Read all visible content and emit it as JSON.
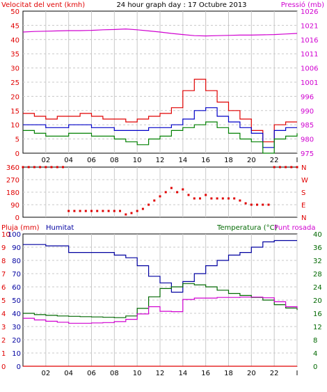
{
  "title": "24 hour graph day : 17 Octubre 2013",
  "x_ticks": [
    "02",
    "04",
    "06",
    "08",
    "10",
    "12",
    "14",
    "16",
    "18",
    "20",
    "22",
    "I"
  ],
  "chart_data": [
    {
      "type": "line",
      "left_label": "Velocitat del vent (kmh)",
      "right_label": "Pressió (mb)",
      "left_ticks": [
        "50",
        "45",
        "40",
        "35",
        "30",
        "25",
        "20",
        "15",
        "10",
        "5",
        "0"
      ],
      "right_ticks": [
        "1026",
        "1021",
        "1016",
        "1011",
        "1006",
        "1001",
        "996",
        "990",
        "985",
        "980",
        "975"
      ],
      "left_range": [
        0,
        50
      ],
      "right_range": [
        975,
        1026
      ],
      "x_range": [
        0,
        24
      ],
      "grid": true,
      "series": [
        {
          "x": [
            0,
            1,
            2,
            3,
            4,
            5,
            6,
            7,
            8,
            9,
            10,
            11,
            12,
            13,
            14,
            15,
            16,
            17,
            18,
            19,
            20,
            21,
            22,
            23,
            24
          ],
          "values": [
            14,
            13,
            12,
            13,
            13,
            14,
            13,
            12,
            12,
            11,
            12,
            13,
            14,
            16,
            22,
            26,
            22,
            18,
            15,
            12,
            8,
            4,
            10,
            11,
            11
          ]
        },
        {
          "x": [
            0,
            1,
            2,
            3,
            4,
            5,
            6,
            7,
            8,
            9,
            10,
            11,
            12,
            13,
            14,
            15,
            16,
            17,
            18,
            19,
            20,
            21,
            22,
            23,
            24
          ],
          "values": [
            10,
            10,
            9,
            9,
            10,
            10,
            9,
            9,
            8,
            8,
            8,
            9,
            9,
            10,
            12,
            15,
            16,
            13,
            11,
            9,
            7,
            2,
            8,
            9,
            9
          ]
        },
        {
          "x": [
            0,
            1,
            2,
            3,
            4,
            5,
            6,
            7,
            8,
            9,
            10,
            11,
            12,
            13,
            14,
            15,
            16,
            17,
            18,
            19,
            20,
            21,
            22,
            23,
            24
          ],
          "values": [
            8,
            7,
            6,
            6,
            7,
            7,
            6,
            6,
            5,
            4,
            3,
            5,
            6,
            8,
            9,
            10,
            11,
            9,
            7,
            5,
            4,
            0,
            5,
            6,
            7
          ]
        },
        {
          "x": [
            0,
            1,
            2,
            3,
            4,
            5,
            6,
            7,
            8,
            9,
            10,
            11,
            12,
            13,
            14,
            15,
            16,
            17,
            18,
            19,
            20,
            21,
            22,
            23,
            24
          ],
          "values": [
            1018.5,
            1018.7,
            1018.8,
            1018.9,
            1019.0,
            1019.0,
            1019.1,
            1019.3,
            1019.4,
            1019.6,
            1019.3,
            1018.9,
            1018.5,
            1018.0,
            1017.6,
            1017.2,
            1017.1,
            1017.2,
            1017.3,
            1017.4,
            1017.4,
            1017.5,
            1017.6,
            1017.8,
            1018.0
          ]
        }
      ]
    },
    {
      "type": "scatter",
      "left_ticks": [
        "360",
        "270",
        "180",
        "90",
        "0"
      ],
      "right_ticks": [
        "N",
        "W",
        "S",
        "E",
        "N"
      ],
      "y_range": [
        0,
        360
      ],
      "x_range": [
        0,
        24
      ],
      "x": [
        0,
        0.5,
        1,
        1.5,
        2,
        2.5,
        3,
        3.5,
        4,
        4.5,
        5,
        5.5,
        6,
        6.5,
        7,
        7.5,
        8,
        8.5,
        9,
        9.5,
        10,
        10.5,
        11,
        11.5,
        12,
        12.5,
        13,
        13.5,
        14,
        14.5,
        15,
        15.5,
        16,
        16.5,
        17,
        17.5,
        18,
        18.5,
        19,
        19.5,
        20,
        20.5,
        21,
        21.5,
        22,
        22.5,
        23,
        23.5,
        24
      ],
      "values": [
        360,
        360,
        360,
        360,
        360,
        360,
        360,
        360,
        45,
        45,
        45,
        45,
        45,
        45,
        45,
        45,
        45,
        45,
        20,
        30,
        45,
        60,
        90,
        120,
        150,
        180,
        210,
        180,
        200,
        160,
        135,
        135,
        160,
        135,
        135,
        135,
        135,
        135,
        120,
        100,
        90,
        90,
        90,
        90,
        360,
        360,
        360,
        360,
        360
      ]
    },
    {
      "type": "line",
      "left_label": "Pluja (mm)",
      "mid_label": "Humitat",
      "right_label": "Temperatura (°C)",
      "right_label2": "Punt rosada",
      "rain_ticks": [
        "10",
        "9",
        "8",
        "7",
        "6",
        "5",
        "4",
        "3",
        "2",
        "1",
        "0"
      ],
      "hum_ticks": [
        "100",
        "90",
        "80",
        "70",
        "60",
        "50",
        "40",
        "30",
        "20",
        "10",
        "0"
      ],
      "temp_ticks": [
        "40",
        "36",
        "32",
        "28",
        "24",
        "20",
        "16",
        "12",
        "8",
        "4",
        "0"
      ],
      "rain_range": [
        0,
        10
      ],
      "hum_range": [
        0,
        100
      ],
      "temp_range": [
        0,
        40
      ],
      "x_range": [
        0,
        24
      ],
      "series": [
        {
          "x": [
            0,
            1,
            2,
            3,
            4,
            5,
            6,
            7,
            8,
            9,
            10,
            11,
            12,
            13,
            14,
            15,
            16,
            17,
            18,
            19,
            20,
            21,
            22,
            23,
            24
          ],
          "values": [
            0,
            0,
            0,
            0,
            0,
            0,
            0,
            0,
            0,
            0,
            0,
            0,
            0,
            0,
            0,
            0,
            0,
            0,
            0,
            0,
            0,
            0,
            0,
            0,
            0
          ]
        },
        {
          "x": [
            0,
            1,
            2,
            3,
            4,
            5,
            6,
            7,
            8,
            9,
            10,
            11,
            12,
            13,
            14,
            15,
            16,
            17,
            18,
            19,
            20,
            21,
            22,
            23,
            24
          ],
          "values": [
            92,
            92,
            91,
            91,
            86,
            86,
            86,
            86,
            84,
            82,
            76,
            68,
            63,
            56,
            64,
            70,
            76,
            80,
            84,
            86,
            90,
            94,
            95,
            95,
            95
          ]
        },
        {
          "x": [
            0,
            1,
            2,
            3,
            4,
            5,
            6,
            7,
            8,
            9,
            10,
            11,
            12,
            13,
            14,
            15,
            16,
            17,
            18,
            19,
            20,
            21,
            22,
            23,
            24
          ],
          "values": [
            16,
            15.6,
            15.4,
            15.2,
            15.1,
            15,
            14.9,
            14.8,
            14.7,
            15.2,
            17.5,
            21,
            23.5,
            24,
            25,
            24.6,
            24,
            23,
            22,
            21.4,
            20.8,
            20,
            18.6,
            17.6,
            17
          ]
        },
        {
          "x": [
            0,
            1,
            2,
            3,
            4,
            5,
            6,
            7,
            8,
            9,
            10,
            11,
            12,
            13,
            14,
            15,
            16,
            17,
            18,
            19,
            20,
            21,
            22,
            23,
            24
          ],
          "values": [
            14.5,
            14,
            13.6,
            13.3,
            13,
            13,
            13.1,
            13.2,
            13.5,
            14.2,
            15.8,
            18,
            16.6,
            16.5,
            20.2,
            20.6,
            20.6,
            20.8,
            20.8,
            20.9,
            20.9,
            20.7,
            19.5,
            18,
            17.5
          ]
        }
      ]
    }
  ],
  "colors": {
    "wind": "#e00000",
    "wind_avg": "#0000c8",
    "gust_low": "#008000",
    "pressure": "#d000d0",
    "humidity": "#0000a0",
    "temperature": "#006800",
    "dew": "#d000d0",
    "rain": "#e00000",
    "dir": "#e00000",
    "grid": "#c8c8c8"
  }
}
